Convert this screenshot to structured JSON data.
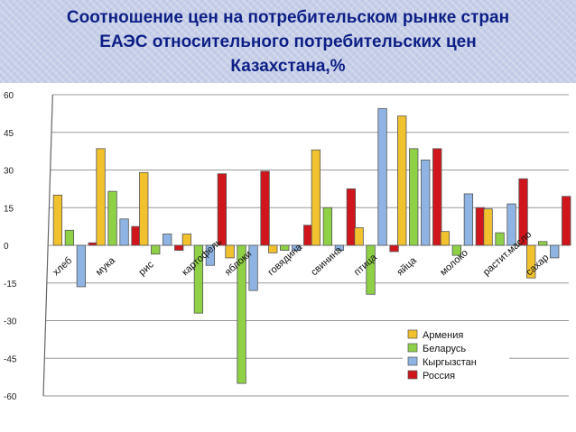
{
  "slide": {
    "title_lines": [
      "Соотношение цен на потребительском рынке стран",
      "ЕАЭС относительного потребительских цен",
      "Казахстана,%"
    ]
  },
  "chart_data": {
    "type": "bar",
    "title": "Соотношение цен на потребительском рынке стран ЕАЭС относительного потребительских цен Казахстана,%",
    "categories": [
      "хлеб",
      "мука",
      "рис",
      "картофель",
      "яблоки",
      "говядина",
      "свинина",
      "птица",
      "яйца",
      "молоко",
      "растит.масло",
      "сахар"
    ],
    "series": [
      {
        "name": "Армения",
        "color": "#f2c12e",
        "values": [
          20,
          38.5,
          29,
          4.5,
          -5,
          -3,
          38,
          7,
          51.5,
          5.5,
          14.5,
          -13
        ]
      },
      {
        "name": "Беларусь",
        "color": "#8fd146",
        "values": [
          6,
          21.5,
          -3.5,
          -27,
          -55,
          -2,
          15,
          -19.5,
          38.5,
          -4,
          5,
          1.5
        ]
      },
      {
        "name": "Кыргызстан",
        "color": "#8fb4e3",
        "values": [
          -16.5,
          10.5,
          4.5,
          -8,
          -18,
          -2,
          -2,
          54.5,
          34,
          20.5,
          16.5,
          -5
        ]
      },
      {
        "name": "Россия",
        "color": "#d0151c",
        "values": [
          1,
          7.5,
          -2,
          28.5,
          29.5,
          8,
          22.5,
          -2.5,
          38.5,
          15,
          26.5,
          19.5
        ]
      }
    ],
    "ylim": [
      -60,
      60
    ],
    "yticks": [
      60,
      45,
      30,
      15,
      0,
      -15,
      -30,
      -45,
      -60
    ],
    "grid": true,
    "legend": "bottom-right"
  }
}
